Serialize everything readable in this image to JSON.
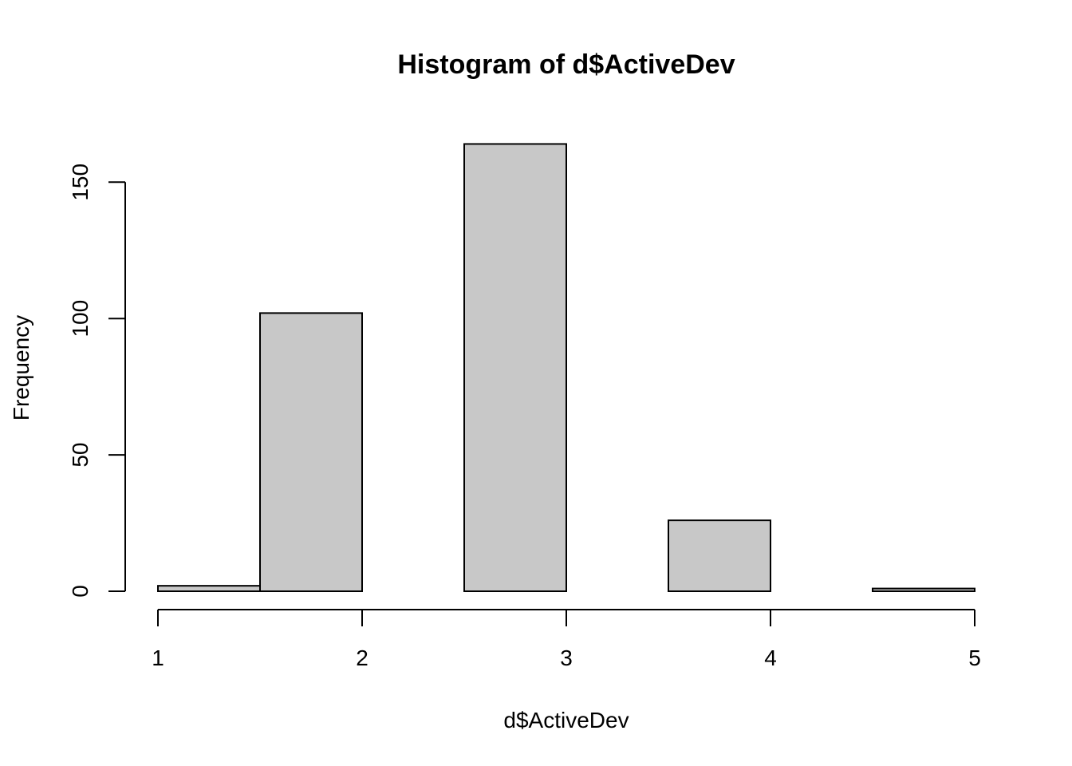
{
  "chart_data": {
    "type": "bar",
    "title": "Histogram of d$ActiveDev",
    "xlabel": "d$ActiveDev",
    "ylabel": "Frequency",
    "bins": [
      {
        "start": 1.0,
        "end": 1.5,
        "count": 2
      },
      {
        "start": 1.5,
        "end": 2.0,
        "count": 102
      },
      {
        "start": 2.0,
        "end": 2.5,
        "count": 0
      },
      {
        "start": 2.5,
        "end": 3.0,
        "count": 164
      },
      {
        "start": 3.0,
        "end": 3.5,
        "count": 0
      },
      {
        "start": 3.5,
        "end": 4.0,
        "count": 26
      },
      {
        "start": 4.0,
        "end": 4.5,
        "count": 0
      },
      {
        "start": 4.5,
        "end": 5.0,
        "count": 1
      }
    ],
    "xlim": [
      1,
      5
    ],
    "ylim": [
      0,
      164
    ],
    "x_ticks": [
      "1",
      "2",
      "3",
      "4",
      "5"
    ],
    "y_ticks": [
      "0",
      "50",
      "100",
      "150"
    ],
    "bar_color": "#c8c8c8",
    "grid": false
  }
}
